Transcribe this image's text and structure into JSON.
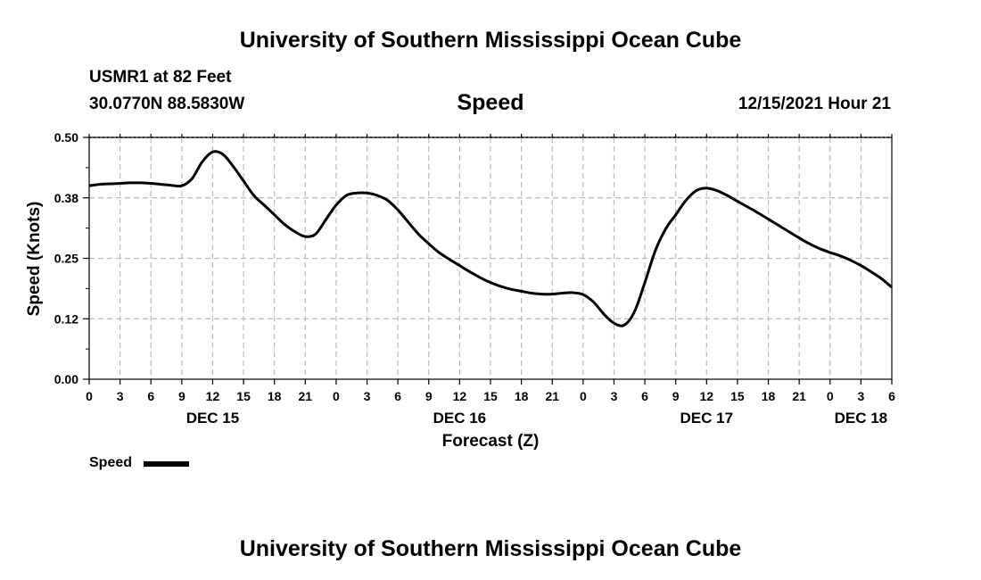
{
  "header": {
    "title": "University of Southern Mississippi Ocean Cube",
    "station": "USMR1 at 82 Feet",
    "coords": "30.0770N  88.5830W",
    "chart_title": "Speed",
    "datetime": "12/15/2021 Hour 21"
  },
  "footer": {
    "title": "University of Southern Mississippi Ocean Cube"
  },
  "legend": {
    "label": "Speed",
    "color": "#000000"
  },
  "chart_data": {
    "type": "line",
    "title": "Speed",
    "xlabel": "Forecast (Z)",
    "ylabel": "Speed (Knots)",
    "x_unit": "hours",
    "xlim": [
      0,
      78
    ],
    "ylim": [
      0,
      0.5
    ],
    "y_ticks": [
      "0.00",
      "0.12",
      "0.25",
      "0.38",
      "0.50"
    ],
    "y_tick_values": [
      0,
      0.125,
      0.25,
      0.375,
      0.5
    ],
    "x_tick_labels": [
      "0",
      "3",
      "6",
      "9",
      "12",
      "15",
      "18",
      "21",
      "0",
      "3",
      "6",
      "9",
      "12",
      "15",
      "18",
      "21",
      "0",
      "3",
      "6",
      "9",
      "12",
      "15",
      "18",
      "21",
      "0",
      "3",
      "6"
    ],
    "x_tick_values": [
      0,
      3,
      6,
      9,
      12,
      15,
      18,
      21,
      24,
      27,
      30,
      33,
      36,
      39,
      42,
      45,
      48,
      51,
      54,
      57,
      60,
      63,
      66,
      69,
      72,
      75,
      78
    ],
    "day_labels": [
      {
        "label": "DEC 15",
        "x": 12
      },
      {
        "label": "DEC 16",
        "x": 36
      },
      {
        "label": "DEC 17",
        "x": 60
      },
      {
        "label": "DEC 18",
        "x": 75
      }
    ],
    "grid": true,
    "legend_position": "bottom-left",
    "series": [
      {
        "name": "Speed",
        "color": "#000000",
        "x": [
          0,
          1,
          2,
          3,
          4,
          5,
          6,
          7,
          8,
          9,
          10,
          11,
          12,
          13,
          14,
          15,
          16,
          17,
          18,
          19,
          20,
          21,
          22,
          23,
          24,
          25,
          26,
          27,
          28,
          29,
          30,
          31,
          32,
          33,
          34,
          35,
          36,
          37,
          38,
          39,
          40,
          41,
          42,
          43,
          44,
          45,
          46,
          47,
          48,
          49,
          50,
          51,
          52,
          53,
          54,
          55,
          56,
          57,
          58,
          59,
          60,
          61,
          62,
          63,
          64,
          65,
          66,
          67,
          68,
          69,
          70,
          71,
          72,
          73,
          74,
          75,
          76,
          77,
          78
        ],
        "values": [
          0.4,
          0.403,
          0.404,
          0.405,
          0.406,
          0.406,
          0.405,
          0.403,
          0.401,
          0.4,
          0.415,
          0.45,
          0.47,
          0.465,
          0.44,
          0.41,
          0.38,
          0.36,
          0.34,
          0.32,
          0.305,
          0.295,
          0.3,
          0.33,
          0.36,
          0.38,
          0.385,
          0.385,
          0.38,
          0.37,
          0.35,
          0.325,
          0.3,
          0.28,
          0.262,
          0.248,
          0.235,
          0.222,
          0.21,
          0.2,
          0.192,
          0.186,
          0.182,
          0.178,
          0.176,
          0.176,
          0.178,
          0.179,
          0.175,
          0.16,
          0.135,
          0.116,
          0.112,
          0.14,
          0.2,
          0.265,
          0.31,
          0.34,
          0.37,
          0.39,
          0.395,
          0.39,
          0.38,
          0.368,
          0.356,
          0.344,
          0.331,
          0.318,
          0.305,
          0.292,
          0.28,
          0.27,
          0.262,
          0.255,
          0.246,
          0.235,
          0.222,
          0.208,
          0.19
        ]
      }
    ]
  }
}
